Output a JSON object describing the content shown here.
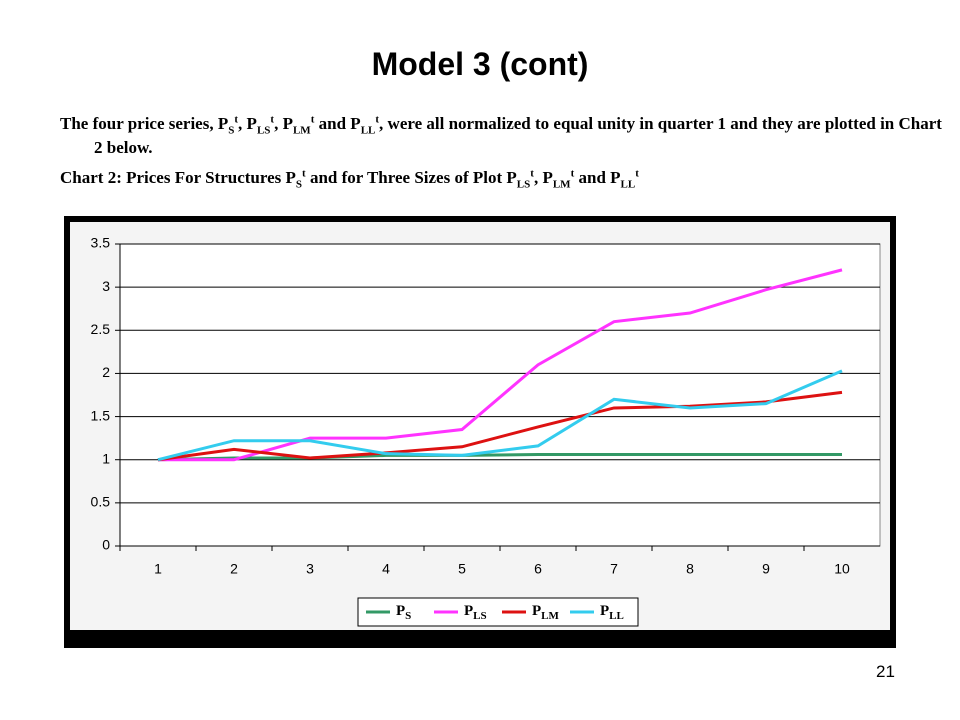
{
  "header": {
    "title": "Model 3 (cont)"
  },
  "intro": {
    "runs": [
      {
        "text": "The four price series, "
      },
      {
        "text": "P",
        "sub": "S",
        "sup": "t"
      },
      {
        "text": ", "
      },
      {
        "text": "P",
        "sub": "LS",
        "sup": "t"
      },
      {
        "text": ", "
      },
      {
        "text": "P",
        "sub": "LM",
        "sup": "t"
      },
      {
        "text": " and "
      },
      {
        "text": "P",
        "sub": "LL",
        "sup": "t"
      },
      {
        "text": ", were all normalized to equal unity in quarter 1 and they are plotted in Chart 2 below."
      }
    ]
  },
  "caption": {
    "runs": [
      {
        "text": "Chart 2: Prices For Structures "
      },
      {
        "text": "P",
        "sub": "S",
        "sup": "t"
      },
      {
        "text": " and for Three Sizes of Plot "
      },
      {
        "text": "P",
        "sub": "LS",
        "sup": "t"
      },
      {
        "text": ", "
      },
      {
        "text": "P",
        "sub": "LM",
        "sup": "t"
      },
      {
        "text": " and "
      },
      {
        "text": "P",
        "sub": "LL",
        "sup": "t"
      }
    ]
  },
  "chart_data": {
    "type": "line",
    "categories": [
      "1",
      "2",
      "3",
      "4",
      "5",
      "6",
      "7",
      "8",
      "9",
      "10"
    ],
    "ylim": [
      0,
      3.5
    ],
    "yticks": [
      0,
      0.5,
      1,
      1.5,
      2,
      2.5,
      3,
      3.5
    ],
    "grid": true,
    "legend": "bottom",
    "series": [
      {
        "name": "P",
        "name_sub": "S",
        "color": "#339966",
        "values": [
          1,
          1.02,
          1.02,
          1.05,
          1.05,
          1.06,
          1.06,
          1.06,
          1.06,
          1.06
        ]
      },
      {
        "name": "P",
        "name_sub": "LS",
        "color": "#ff33ff",
        "values": [
          1,
          1.0,
          1.25,
          1.25,
          1.35,
          2.1,
          2.6,
          2.7,
          2.97,
          3.2
        ]
      },
      {
        "name": "P",
        "name_sub": "LM",
        "color": "#dd1111",
        "values": [
          1,
          1.12,
          1.02,
          1.08,
          1.15,
          1.38,
          1.6,
          1.62,
          1.67,
          1.78
        ]
      },
      {
        "name": "P",
        "name_sub": "LL",
        "color": "#33ccee",
        "values": [
          1,
          1.22,
          1.22,
          1.07,
          1.05,
          1.16,
          1.7,
          1.6,
          1.65,
          2.03
        ]
      }
    ]
  },
  "footer": {
    "page": "21"
  }
}
